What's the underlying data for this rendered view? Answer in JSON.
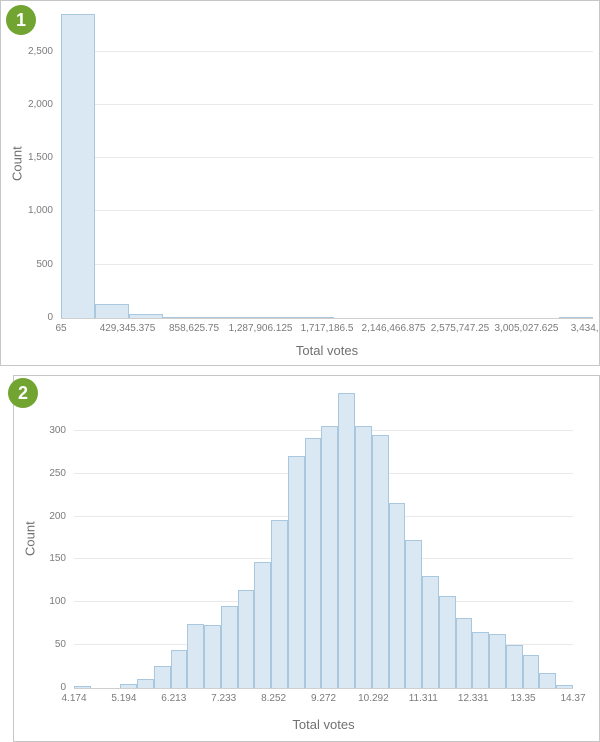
{
  "colors": {
    "badge_green": "#72a431",
    "bar_fill": "#d9e8f3",
    "bar_border": "#a9c8dd",
    "grid_line": "#e9e9e9",
    "axis_line": "#cfcfcf",
    "tick_text": "#7b7b7b",
    "axis_title_text": "#707070",
    "panel_border": "#c6c6c6"
  },
  "panels": [
    {
      "badge": "1"
    },
    {
      "badge": "2"
    }
  ],
  "chart_data": [
    {
      "type": "bar",
      "title": "",
      "xlabel": "Total votes",
      "ylabel": "Count",
      "ylim": [
        0,
        2900
      ],
      "yticks": [
        0,
        500,
        1000,
        1500,
        2000,
        2500
      ],
      "ytick_labels": [
        "0",
        "500",
        "1,000",
        "1,500",
        "2,000",
        "2,500"
      ],
      "xtick_labels": [
        "65",
        "429,345.375",
        "858,625.75",
        "1,287,906.125",
        "1,717,186.5",
        "2,146,466.875",
        "2,575,747.25",
        "3,005,027.625",
        "3,434,308"
      ],
      "bin_start": 65,
      "bin_width": 214640.1875,
      "values": [
        2855,
        130,
        42,
        14,
        5,
        2,
        1,
        1,
        0,
        0,
        0,
        0,
        0,
        0,
        0,
        1
      ],
      "grid": "horizontal",
      "legend": "none"
    },
    {
      "type": "bar",
      "title": "",
      "xlabel": "Total votes",
      "ylabel": "Count",
      "ylim": [
        0,
        350
      ],
      "yticks": [
        0,
        50,
        100,
        150,
        200,
        250,
        300
      ],
      "ytick_labels": [
        "0",
        "50",
        "100",
        "150",
        "200",
        "250",
        "300"
      ],
      "xtick_labels": [
        "4.174",
        "5.194",
        "6.213",
        "7.233",
        "8.252",
        "9.272",
        "10.292",
        "11.311",
        "12.331",
        "13.35",
        "14.37"
      ],
      "bin_start": 4.174,
      "bin_width": 0.33987,
      "values": [
        2,
        0,
        0,
        5,
        10,
        26,
        44,
        75,
        74,
        96,
        114,
        147,
        196,
        271,
        292,
        306,
        344,
        306,
        295,
        216,
        173,
        131,
        107,
        82,
        65,
        63,
        50,
        38,
        18,
        4
      ],
      "grid": "horizontal",
      "legend": "none"
    }
  ]
}
